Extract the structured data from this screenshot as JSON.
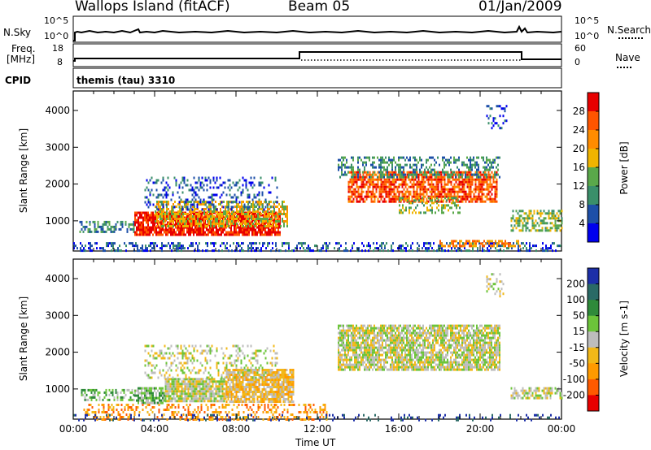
{
  "header": {
    "station": "Wallops Island (fitACF)",
    "beam": "Beam 05",
    "date": "01/Jan/2009"
  },
  "panels": {
    "nsky": {
      "label": "N.Sky",
      "tick_top": "10^5",
      "tick_bottom": "10^0",
      "right_label": "N.Search",
      "right_tick_top": "10^5",
      "right_tick_bottom": "10^0"
    },
    "freq": {
      "label_line1": "Freq.",
      "label_line2": "[MHz]",
      "tick_top": "18",
      "tick_bottom": "8",
      "right_label": "Nave",
      "right_tick_top": "60",
      "right_tick_bottom": "0"
    },
    "cpid": {
      "label": "CPID",
      "value": "themis (tau) 3310"
    }
  },
  "chart_data": [
    {
      "type": "heatmap",
      "name": "power",
      "ylabel": "Slant Range [km]",
      "yticks": [
        "1000",
        "2000",
        "3000",
        "4000"
      ],
      "ylim": [
        180,
        4530
      ],
      "xlim_hours": [
        0,
        24
      ],
      "colorbar": {
        "label": "Power [dB]",
        "ticks": [
          "4",
          "8",
          "12",
          "16",
          "20",
          "24",
          "28"
        ],
        "colors": [
          "#0000ee",
          "#1d4fa8",
          "#3a8f6a",
          "#5aa84a",
          "#f0b400",
          "#ff8c00",
          "#ff5500",
          "#e80000"
        ]
      },
      "scatter_regions": [
        {
          "t": [
            0.3,
            3.0
          ],
          "range": [
            700,
            1000
          ],
          "level": 2,
          "density": 0.45
        },
        {
          "t": [
            3.0,
            10.2
          ],
          "range": [
            620,
            1250
          ],
          "level": 7,
          "density": 0.85
        },
        {
          "t": [
            4.0,
            10.5
          ],
          "range": [
            850,
            1550
          ],
          "level": 4,
          "density": 0.6
        },
        {
          "t": [
            3.5,
            10.0
          ],
          "range": [
            1300,
            2200
          ],
          "level": 1,
          "density": 0.25
        },
        {
          "t": [
            13.5,
            20.8
          ],
          "range": [
            1500,
            2350
          ],
          "level": 6,
          "density": 0.75
        },
        {
          "t": [
            13.0,
            21.0
          ],
          "range": [
            2200,
            2750
          ],
          "level": 2,
          "density": 0.4
        },
        {
          "t": [
            16.0,
            19.0
          ],
          "range": [
            1250,
            1650
          ],
          "level": 3,
          "density": 0.35
        },
        {
          "t": [
            20.3,
            21.3
          ],
          "range": [
            3550,
            4150
          ],
          "level": 1,
          "density": 0.25
        },
        {
          "t": [
            21.5,
            24.0
          ],
          "range": [
            750,
            1300
          ],
          "level": 3,
          "density": 0.55
        },
        {
          "t": [
            0.0,
            24.0
          ],
          "range": [
            180,
            420
          ],
          "level": 1,
          "density": 0.4
        },
        {
          "t": [
            18.0,
            22.0
          ],
          "range": [
            300,
            480
          ],
          "level": 5,
          "density": 0.5
        }
      ]
    },
    {
      "type": "heatmap",
      "name": "velocity",
      "ylabel": "Slant Range [km]",
      "yticks": [
        "1000",
        "2000",
        "3000",
        "4000"
      ],
      "ylim": [
        180,
        4530
      ],
      "xlim_hours": [
        0,
        24
      ],
      "xlabel": "Time UT",
      "xticks": [
        "00:00",
        "04:00",
        "08:00",
        "12:00",
        "16:00",
        "20:00",
        "00:00"
      ],
      "colorbar": {
        "label": "Velocity [m s-1]",
        "ticks": [
          "200",
          "100",
          "50",
          "15",
          "-15",
          "-50",
          "-100",
          "-200"
        ],
        "colors": [
          "#1c2fa8",
          "#2a6a66",
          "#2f8a3a",
          "#6cc43a",
          "#bdbdbd",
          "#f2b818",
          "#ff9a00",
          "#ff5a00",
          "#e80000"
        ]
      },
      "scatter_regions": [
        {
          "t": [
            0.3,
            3.0
          ],
          "range": [
            700,
            1000
          ],
          "level": 3,
          "density": 0.45
        },
        {
          "t": [
            3.0,
            4.5
          ],
          "range": [
            650,
            1050
          ],
          "level": 3,
          "density": 0.8
        },
        {
          "t": [
            4.5,
            7.5
          ],
          "range": [
            650,
            1300
          ],
          "level": 4,
          "density": 0.85
        },
        {
          "t": [
            7.5,
            10.8
          ],
          "range": [
            650,
            1550
          ],
          "level": 5,
          "density": 0.85
        },
        {
          "t": [
            3.5,
            10.0
          ],
          "range": [
            1300,
            2200
          ],
          "level": 4,
          "density": 0.25
        },
        {
          "t": [
            0.5,
            12.5
          ],
          "range": [
            200,
            600
          ],
          "level": 6,
          "density": 0.35
        },
        {
          "t": [
            13.0,
            21.0
          ],
          "range": [
            1500,
            2750
          ],
          "level": 4,
          "density": 0.8
        },
        {
          "t": [
            20.3,
            21.3
          ],
          "range": [
            3550,
            4150
          ],
          "level": 4,
          "density": 0.25
        },
        {
          "t": [
            21.5,
            24.0
          ],
          "range": [
            750,
            1050
          ],
          "level": 4,
          "density": 0.55
        },
        {
          "t": [
            0.0,
            24.0
          ],
          "range": [
            180,
            320
          ],
          "level": 0,
          "density": 0.15
        }
      ]
    }
  ]
}
